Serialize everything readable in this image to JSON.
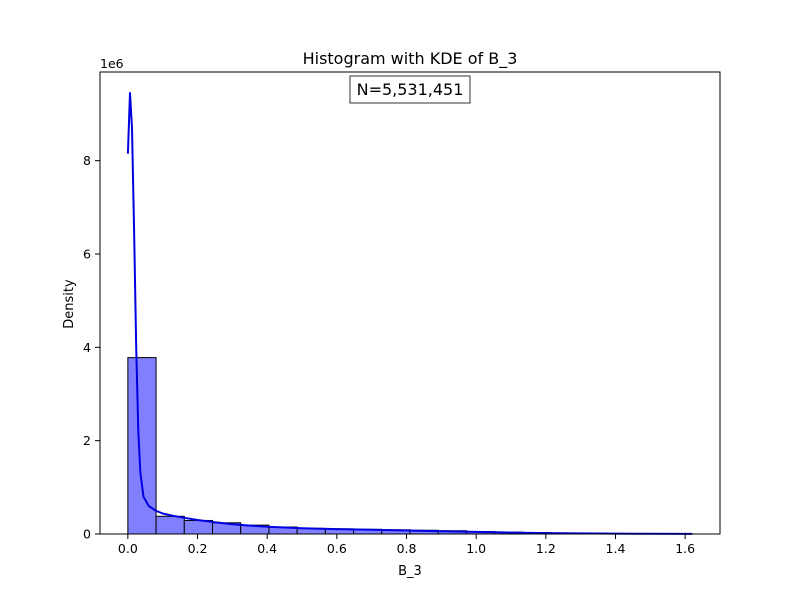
{
  "chart_data": {
    "type": "histogram",
    "title": "Histogram with KDE of B_3",
    "xlabel": "B_3",
    "ylabel": "Density",
    "y_scale_label": "1e6",
    "annotation": "N=5,531,451",
    "xlim": [
      -0.08,
      1.7
    ],
    "ylim": [
      0,
      9.9
    ],
    "x_ticks": [
      0.0,
      0.2,
      0.4,
      0.6,
      0.8,
      1.0,
      1.2,
      1.4,
      1.6
    ],
    "x_tick_labels": [
      "0.0",
      "0.2",
      "0.4",
      "0.6",
      "0.8",
      "1.0",
      "1.2",
      "1.4",
      "1.6"
    ],
    "y_ticks": [
      0,
      2,
      4,
      6,
      8
    ],
    "y_tick_labels": [
      "0",
      "2",
      "4",
      "6",
      "8"
    ],
    "grid": false,
    "bins": {
      "edges": [
        0.0,
        0.081,
        0.162,
        0.243,
        0.324,
        0.405,
        0.486,
        0.567,
        0.648,
        0.729,
        0.81,
        0.891,
        0.972,
        1.053,
        1.134,
        1.215,
        1.296,
        1.377,
        1.458,
        1.539,
        1.62
      ],
      "values": [
        3.78,
        0.38,
        0.29,
        0.24,
        0.19,
        0.15,
        0.12,
        0.11,
        0.1,
        0.09,
        0.08,
        0.07,
        0.05,
        0.04,
        0.03,
        0.02,
        0.015,
        0.01,
        0.008,
        0.005
      ],
      "fill_color": "#8080ff",
      "edge_color": "#000000"
    },
    "kde": {
      "color": "#0000e0",
      "x": [
        0.0,
        0.006,
        0.012,
        0.018,
        0.024,
        0.03,
        0.036,
        0.045,
        0.06,
        0.08,
        0.1,
        0.13,
        0.16,
        0.2,
        0.25,
        0.3,
        0.35,
        0.4,
        0.5,
        0.6,
        0.7,
        0.8,
        0.9,
        1.0,
        1.1,
        1.2,
        1.3,
        1.4,
        1.5,
        1.62
      ],
      "y": [
        8.15,
        9.45,
        8.7,
        6.5,
        4.0,
        2.2,
        1.3,
        0.8,
        0.6,
        0.5,
        0.44,
        0.39,
        0.35,
        0.3,
        0.25,
        0.21,
        0.18,
        0.155,
        0.125,
        0.105,
        0.09,
        0.075,
        0.06,
        0.045,
        0.03,
        0.02,
        0.012,
        0.008,
        0.005,
        0.002
      ]
    }
  }
}
